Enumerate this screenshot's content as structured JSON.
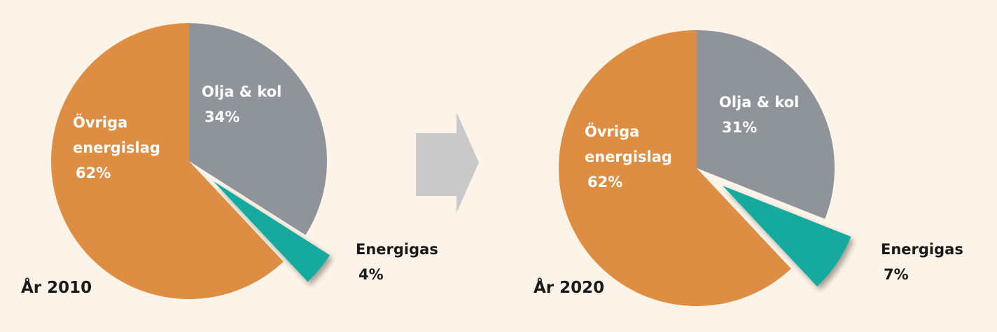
{
  "chart_data": [
    {
      "type": "pie",
      "title": "År 2010",
      "categories": [
        "Olja & kol",
        "Energigas",
        "Övriga energislag"
      ],
      "values": [
        34,
        4,
        62
      ],
      "value_labels": [
        "34%",
        "4%",
        "62%"
      ],
      "colors": [
        "#8e949a",
        "#14aa9e",
        "#de8e42"
      ],
      "exploded": [
        false,
        true,
        false
      ]
    },
    {
      "type": "pie",
      "title": "År 2020",
      "categories": [
        "Olja & kol",
        "Energigas",
        "Övriga energislag"
      ],
      "values": [
        31,
        7,
        62
      ],
      "value_labels": [
        "31%",
        "7%",
        "62%"
      ],
      "colors": [
        "#8e949a",
        "#14aa9e",
        "#de8e42"
      ],
      "exploded": [
        false,
        true,
        false
      ]
    }
  ]
}
